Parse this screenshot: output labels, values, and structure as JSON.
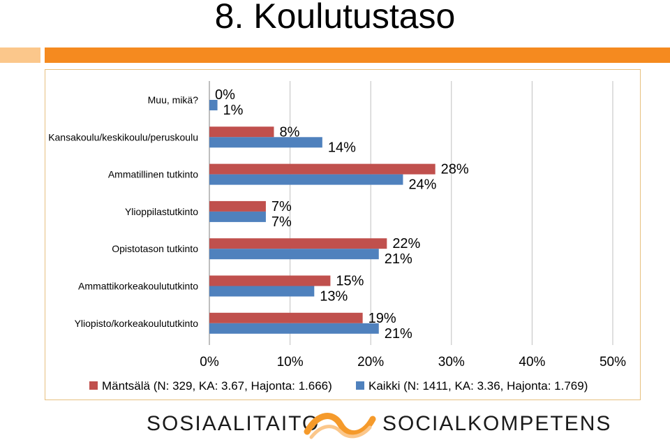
{
  "page": {
    "title": "8. Koulutustaso"
  },
  "chart_data": {
    "type": "bar",
    "orientation": "horizontal",
    "categories": [
      "Muu, mikä?",
      "Kansakoulu/keskikoulu/peruskoulu",
      "Ammatillinen tutkinto",
      "Ylioppilastutkinto",
      "Opistotason tutkinto",
      "Ammattikorkeakoulututkinto",
      "Yliopisto/korkeakoulututkinto"
    ],
    "series": [
      {
        "name": "Mäntsälä (N: 329, KA: 3.67, Hajonta: 1.666)",
        "color": "#c0504d",
        "values": [
          0,
          8,
          28,
          7,
          22,
          15,
          19
        ],
        "labels": [
          "0%",
          "8%",
          "28%",
          "7%",
          "22%",
          "15%",
          "19%"
        ]
      },
      {
        "name": "Kaikki (N: 1411, KA: 3.36, Hajonta: 1.769)",
        "color": "#4f81bd",
        "values": [
          1,
          14,
          24,
          7,
          21,
          13,
          21
        ],
        "labels": [
          "1%",
          "14%",
          "24%",
          "7%",
          "21%",
          "13%",
          "21%"
        ]
      }
    ],
    "xlim": [
      0,
      50
    ],
    "xticks": [
      "0%",
      "10%",
      "20%",
      "30%",
      "40%",
      "50%"
    ],
    "grid": true,
    "legend": "bottom"
  },
  "footer": {
    "logo_left": "SOSIAALITAITO",
    "logo_right": "SOCIALKOMPETENS"
  }
}
